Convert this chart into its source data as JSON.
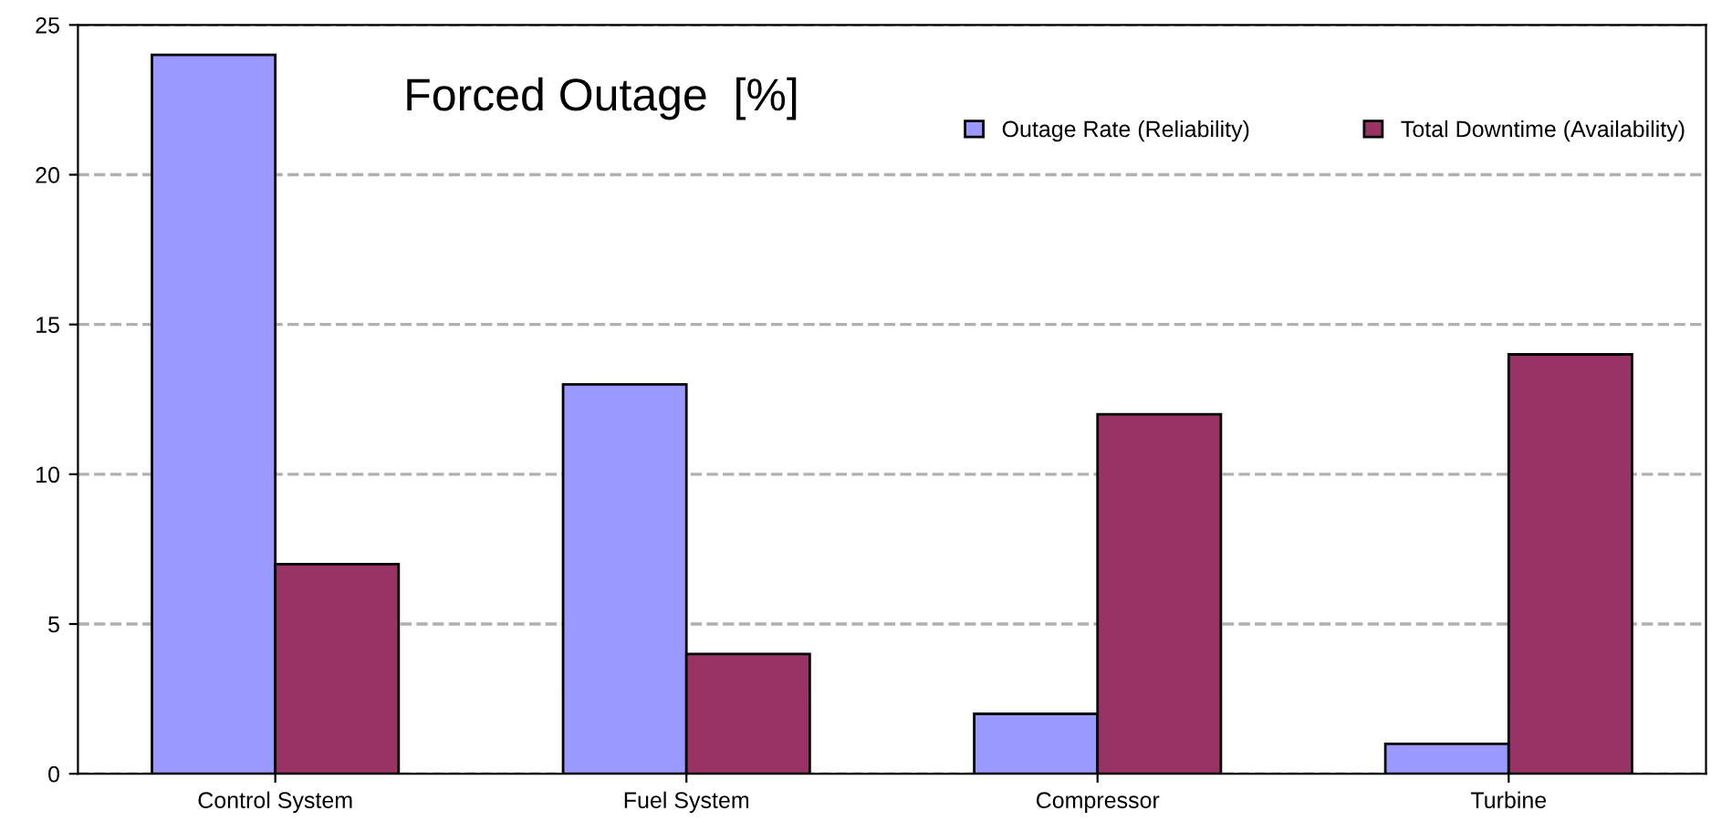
{
  "chart_data": {
    "type": "bar",
    "title": "Forced Outage  [%]",
    "categories": [
      "Control System",
      "Fuel System",
      "Compressor",
      "Turbine"
    ],
    "series": [
      {
        "name": "Outage Rate (Reliability)",
        "color": "#9999ff",
        "values": [
          24,
          13,
          2,
          1
        ]
      },
      {
        "name": "Total Downtime (Availability)",
        "color": "#993366",
        "values": [
          7,
          4,
          12,
          14
        ]
      }
    ],
    "ylim": [
      0,
      25
    ],
    "yticks": [
      0,
      5,
      10,
      15,
      20,
      25
    ],
    "grid": "y",
    "legend": "top right"
  }
}
